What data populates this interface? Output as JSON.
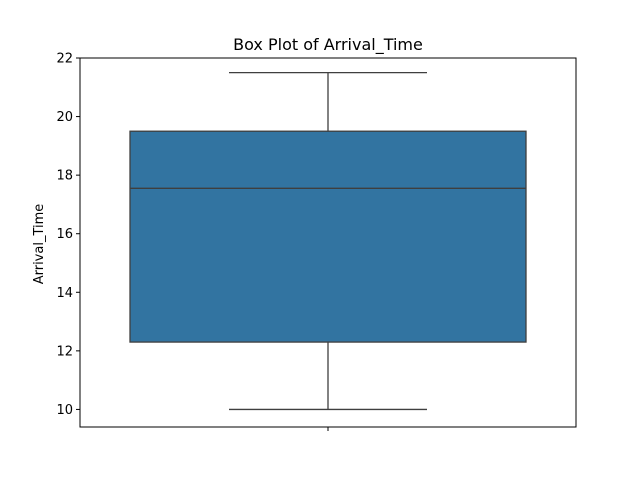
{
  "chart_data": {
    "type": "box",
    "title": "Box Plot of Arrival_Time",
    "xlabel": "",
    "ylabel": "Arrival_Time",
    "ylim": [
      9.4,
      22.0
    ],
    "yticks": [
      10,
      12,
      14,
      16,
      18,
      20,
      22
    ],
    "grid": false,
    "box": {
      "whisker_low": 10.0,
      "q1": 12.3,
      "median": 17.55,
      "q3": 19.5,
      "whisker_high": 21.5
    },
    "colors": {
      "box_fill": "#3274a1",
      "line": "#3f3f3f",
      "frame": "#000000"
    }
  }
}
